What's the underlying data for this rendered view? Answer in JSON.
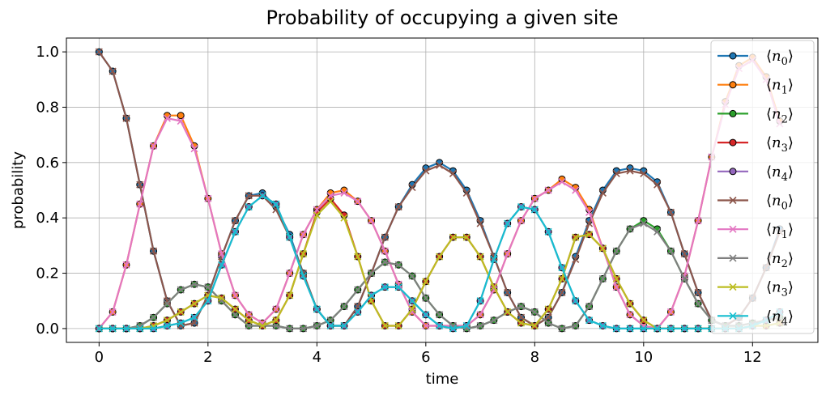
{
  "chart_data": {
    "type": "line",
    "title": "Probability of occupying a given site",
    "xlabel": "time",
    "ylabel": "probability",
    "xlim": [
      -0.6,
      13.2
    ],
    "ylim": [
      -0.05,
      1.05
    ],
    "xticks": [
      0,
      2,
      4,
      6,
      8,
      10,
      12
    ],
    "yticks": [
      0.0,
      0.2,
      0.4,
      0.6,
      0.8,
      1.0
    ],
    "xtick_labels": [
      "0",
      "2",
      "4",
      "6",
      "8",
      "10",
      "12"
    ],
    "ytick_labels": [
      "0.0",
      "0.2",
      "0.4",
      "0.6",
      "0.8",
      "1.0"
    ],
    "grid": true,
    "legend_position": "upper right",
    "x": [
      0,
      0.25,
      0.5,
      0.75,
      1.0,
      1.25,
      1.5,
      1.75,
      2.0,
      2.25,
      2.5,
      2.75,
      3.0,
      3.25,
      3.5,
      3.75,
      4.0,
      4.25,
      4.5,
      4.75,
      5.0,
      5.25,
      5.5,
      5.75,
      6.0,
      6.25,
      6.5,
      6.75,
      7.0,
      7.25,
      7.5,
      7.75,
      8.0,
      8.25,
      8.5,
      8.75,
      9.0,
      9.25,
      9.5,
      9.75,
      10.0,
      10.25,
      10.5,
      10.75,
      11.0,
      11.25,
      11.5,
      11.75,
      12.0,
      12.25,
      12.5
    ],
    "series": [
      {
        "name": "⟨n₀⟩",
        "sub": "0",
        "marker": "o",
        "color": "#1f77b4",
        "values": [
          1.0,
          0.93,
          0.76,
          0.52,
          0.28,
          0.1,
          0.01,
          0.02,
          0.12,
          0.26,
          0.39,
          0.48,
          0.49,
          0.44,
          0.34,
          0.2,
          0.07,
          0.01,
          0.01,
          0.08,
          0.2,
          0.33,
          0.44,
          0.52,
          0.58,
          0.6,
          0.57,
          0.5,
          0.39,
          0.26,
          0.13,
          0.04,
          0.01,
          0.04,
          0.13,
          0.26,
          0.39,
          0.5,
          0.57,
          0.58,
          0.57,
          0.53,
          0.42,
          0.27,
          0.13,
          0.03,
          0.01,
          0.04,
          0.11,
          0.22,
          0.36
        ]
      },
      {
        "name": "⟨n₁⟩",
        "sub": "1",
        "marker": "o",
        "color": "#ff7f0e",
        "values": [
          0.0,
          0.06,
          0.23,
          0.45,
          0.66,
          0.77,
          0.77,
          0.66,
          0.47,
          0.27,
          0.12,
          0.05,
          0.02,
          0.07,
          0.2,
          0.34,
          0.43,
          0.49,
          0.5,
          0.46,
          0.39,
          0.28,
          0.16,
          0.06,
          0.01,
          0.01,
          0.01,
          0.01,
          0.05,
          0.14,
          0.27,
          0.39,
          0.47,
          0.5,
          0.54,
          0.51,
          0.43,
          0.29,
          0.15,
          0.05,
          0.01,
          0.0,
          0.06,
          0.19,
          0.39,
          0.62,
          0.82,
          0.95,
          0.98,
          0.91,
          0.75
        ]
      },
      {
        "name": "⟨n₂⟩",
        "sub": "2",
        "marker": "o",
        "color": "#2ca02c",
        "values": [
          0.0,
          0.0,
          0.0,
          0.01,
          0.04,
          0.09,
          0.14,
          0.16,
          0.15,
          0.1,
          0.05,
          0.01,
          0.01,
          0.01,
          0.0,
          0.0,
          0.01,
          0.03,
          0.08,
          0.14,
          0.2,
          0.24,
          0.23,
          0.19,
          0.11,
          0.05,
          0.01,
          0.0,
          0.01,
          0.03,
          0.06,
          0.08,
          0.06,
          0.02,
          0.0,
          0.01,
          0.08,
          0.18,
          0.28,
          0.36,
          0.39,
          0.36,
          0.28,
          0.18,
          0.09,
          0.03,
          0.01,
          0.01,
          0.02,
          0.03,
          0.04
        ]
      },
      {
        "name": "⟨n₃⟩",
        "sub": "3",
        "marker": "o",
        "color": "#d62728",
        "values": [
          0.0,
          0.0,
          0.0,
          0.0,
          0.01,
          0.03,
          0.06,
          0.09,
          0.12,
          0.11,
          0.07,
          0.03,
          0.01,
          0.03,
          0.12,
          0.27,
          0.42,
          0.47,
          0.41,
          0.26,
          0.1,
          0.01,
          0.01,
          0.07,
          0.17,
          0.26,
          0.33,
          0.33,
          0.26,
          0.15,
          0.06,
          0.02,
          0.01,
          0.07,
          0.18,
          0.33,
          0.34,
          0.29,
          0.18,
          0.09,
          0.03,
          0.0,
          0.0,
          0.0,
          0.0,
          0.0,
          0.0,
          0.0,
          0.01,
          0.01,
          0.02
        ]
      },
      {
        "name": "⟨n₄⟩",
        "sub": "4",
        "marker": "o",
        "color": "#9467bd",
        "values": [
          0.0,
          0.0,
          0.0,
          0.0,
          0.0,
          0.01,
          0.02,
          0.04,
          0.1,
          0.23,
          0.35,
          0.44,
          0.48,
          0.45,
          0.33,
          0.19,
          0.07,
          0.01,
          0.01,
          0.06,
          0.12,
          0.15,
          0.15,
          0.1,
          0.05,
          0.01,
          0.0,
          0.01,
          0.1,
          0.25,
          0.38,
          0.44,
          0.43,
          0.35,
          0.22,
          0.1,
          0.03,
          0.01,
          0.0,
          0.0,
          0.0,
          0.0,
          0.0,
          0.0,
          0.0,
          0.0,
          0.0,
          0.0,
          0.01,
          0.03,
          0.06
        ]
      },
      {
        "name": "⟨n₀⟩",
        "sub": "0",
        "marker": "x",
        "color": "#8c564b",
        "values": [
          1.0,
          0.93,
          0.76,
          0.52,
          0.28,
          0.1,
          0.01,
          0.02,
          0.12,
          0.26,
          0.39,
          0.48,
          0.48,
          0.43,
          0.33,
          0.2,
          0.07,
          0.01,
          0.01,
          0.08,
          0.2,
          0.33,
          0.44,
          0.51,
          0.57,
          0.59,
          0.56,
          0.49,
          0.38,
          0.26,
          0.13,
          0.04,
          0.01,
          0.04,
          0.13,
          0.25,
          0.38,
          0.49,
          0.56,
          0.57,
          0.56,
          0.52,
          0.42,
          0.27,
          0.13,
          0.03,
          0.01,
          0.04,
          0.11,
          0.22,
          0.35
        ]
      },
      {
        "name": "⟨n₁⟩",
        "sub": "1",
        "marker": "x",
        "color": "#e377c2",
        "values": [
          0.0,
          0.06,
          0.23,
          0.45,
          0.66,
          0.76,
          0.75,
          0.65,
          0.47,
          0.27,
          0.12,
          0.05,
          0.02,
          0.07,
          0.2,
          0.34,
          0.43,
          0.48,
          0.49,
          0.46,
          0.39,
          0.28,
          0.16,
          0.06,
          0.01,
          0.01,
          0.01,
          0.01,
          0.05,
          0.14,
          0.27,
          0.39,
          0.47,
          0.5,
          0.53,
          0.5,
          0.42,
          0.29,
          0.15,
          0.05,
          0.01,
          0.0,
          0.06,
          0.19,
          0.39,
          0.62,
          0.81,
          0.94,
          0.97,
          0.9,
          0.74
        ]
      },
      {
        "name": "⟨n₂⟩",
        "sub": "2",
        "marker": "x",
        "color": "#7f7f7f",
        "values": [
          0.0,
          0.0,
          0.0,
          0.01,
          0.04,
          0.09,
          0.14,
          0.16,
          0.15,
          0.1,
          0.05,
          0.01,
          0.01,
          0.01,
          0.0,
          0.0,
          0.01,
          0.03,
          0.08,
          0.14,
          0.2,
          0.24,
          0.23,
          0.19,
          0.11,
          0.05,
          0.01,
          0.0,
          0.01,
          0.03,
          0.06,
          0.08,
          0.06,
          0.02,
          0.0,
          0.01,
          0.08,
          0.18,
          0.28,
          0.36,
          0.38,
          0.35,
          0.28,
          0.18,
          0.09,
          0.03,
          0.01,
          0.01,
          0.02,
          0.03,
          0.04
        ]
      },
      {
        "name": "⟨n₃⟩",
        "sub": "3",
        "marker": "x",
        "color": "#bcbd22",
        "values": [
          0.0,
          0.0,
          0.0,
          0.0,
          0.01,
          0.03,
          0.06,
          0.09,
          0.12,
          0.11,
          0.07,
          0.03,
          0.01,
          0.03,
          0.12,
          0.27,
          0.41,
          0.46,
          0.4,
          0.26,
          0.1,
          0.01,
          0.01,
          0.07,
          0.17,
          0.26,
          0.33,
          0.33,
          0.26,
          0.15,
          0.06,
          0.02,
          0.01,
          0.07,
          0.18,
          0.33,
          0.34,
          0.29,
          0.18,
          0.09,
          0.03,
          0.0,
          0.0,
          0.0,
          0.0,
          0.0,
          0.0,
          0.0,
          0.01,
          0.01,
          0.02
        ]
      },
      {
        "name": "⟨n₄⟩",
        "sub": "4",
        "marker": "x",
        "color": "#17becf",
        "values": [
          0.0,
          0.0,
          0.0,
          0.0,
          0.0,
          0.01,
          0.02,
          0.04,
          0.1,
          0.23,
          0.35,
          0.44,
          0.48,
          0.45,
          0.33,
          0.19,
          0.07,
          0.01,
          0.01,
          0.06,
          0.12,
          0.15,
          0.15,
          0.1,
          0.05,
          0.01,
          0.0,
          0.01,
          0.1,
          0.25,
          0.38,
          0.44,
          0.43,
          0.35,
          0.22,
          0.1,
          0.03,
          0.01,
          0.0,
          0.0,
          0.0,
          0.0,
          0.0,
          0.0,
          0.0,
          0.0,
          0.0,
          0.0,
          0.01,
          0.03,
          0.06
        ]
      }
    ]
  }
}
